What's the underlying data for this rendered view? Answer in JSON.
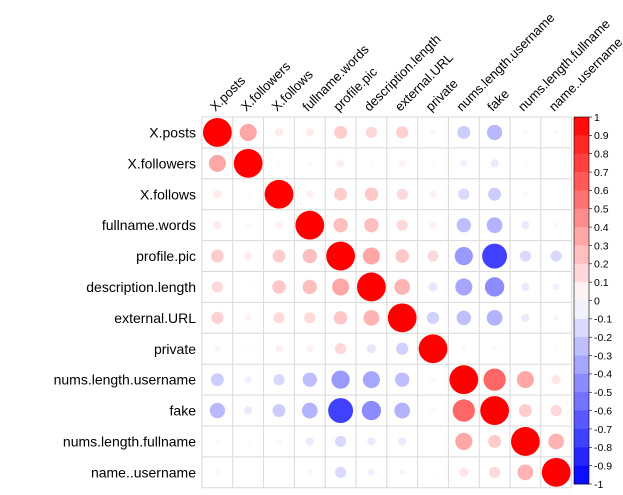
{
  "chart_data": {
    "type": "heatmap",
    "style": "circle-correlation-matrix",
    "title": "",
    "variables": [
      "X.posts",
      "X.followers",
      "X.follows",
      "fullname.words",
      "profile.pic",
      "description.length",
      "external.URL",
      "private",
      "nums.length.username",
      "fake",
      "nums.length.fullname",
      "name..username"
    ],
    "matrix": [
      [
        1.0,
        0.35,
        0.08,
        0.08,
        0.2,
        0.15,
        0.18,
        0.04,
        -0.2,
        -0.28,
        0.03,
        0.03
      ],
      [
        0.35,
        1.0,
        0.02,
        0.03,
        0.07,
        0.02,
        0.05,
        -0.02,
        -0.06,
        -0.08,
        -0.02,
        0.0
      ],
      [
        0.08,
        0.02,
        1.0,
        0.06,
        0.2,
        0.22,
        0.15,
        0.06,
        -0.15,
        -0.2,
        -0.03,
        0.0
      ],
      [
        0.08,
        0.03,
        0.06,
        1.0,
        0.25,
        0.25,
        0.15,
        0.06,
        -0.25,
        -0.3,
        -0.08,
        -0.03
      ],
      [
        0.2,
        0.07,
        0.2,
        0.25,
        1.0,
        0.35,
        0.22,
        0.15,
        -0.4,
        -0.75,
        -0.15,
        -0.15
      ],
      [
        0.15,
        0.02,
        0.22,
        0.25,
        0.35,
        1.0,
        0.3,
        -0.1,
        -0.35,
        -0.45,
        -0.08,
        -0.06
      ],
      [
        0.18,
        0.05,
        0.15,
        0.15,
        0.22,
        0.3,
        1.0,
        -0.18,
        -0.25,
        -0.3,
        -0.08,
        -0.04
      ],
      [
        0.04,
        -0.02,
        0.06,
        0.06,
        0.15,
        -0.1,
        -0.18,
        1.0,
        0.03,
        0.03,
        0.0,
        0.02
      ],
      [
        -0.2,
        -0.06,
        -0.15,
        -0.25,
        -0.4,
        -0.35,
        -0.25,
        0.03,
        1.0,
        0.6,
        0.35,
        0.1
      ],
      [
        -0.28,
        -0.08,
        -0.2,
        -0.3,
        -0.75,
        -0.45,
        -0.3,
        0.03,
        0.6,
        1.0,
        0.2,
        0.15
      ],
      [
        0.03,
        -0.02,
        -0.03,
        -0.08,
        -0.15,
        -0.08,
        -0.08,
        0.0,
        0.35,
        0.2,
        1.0,
        0.3
      ],
      [
        0.03,
        0.0,
        0.0,
        -0.03,
        -0.15,
        -0.06,
        -0.04,
        0.02,
        0.1,
        0.15,
        0.3,
        1.0
      ]
    ],
    "colorbar": {
      "min": -1,
      "max": 1,
      "step": 0.1,
      "tick_labels": [
        "1",
        "0.9",
        "0.8",
        "0.7",
        "0.6",
        "0.5",
        "0.4",
        "0.3",
        "0.2",
        "0.1",
        "0",
        "-0.1",
        "-0.2",
        "-0.3",
        "-0.4",
        "-0.5",
        "-0.6",
        "-0.7",
        "-0.8",
        "-0.9",
        "-1"
      ],
      "color_negative": "#0000ff",
      "color_zero": "#ffffff",
      "color_positive": "#ff0000"
    },
    "grid": true,
    "legend_placement": "right"
  }
}
